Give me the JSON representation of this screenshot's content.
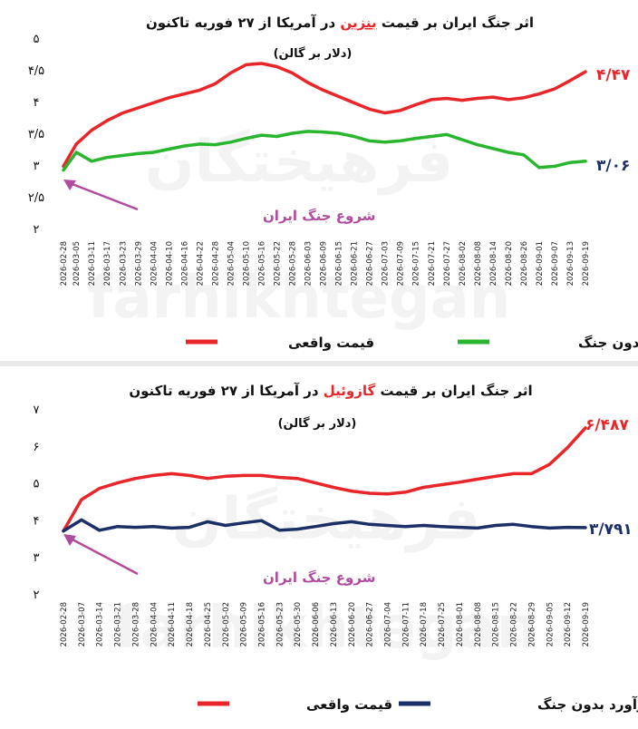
{
  "charts": [
    {
      "title_parts": {
        "before": "اثر جنگ ایران بر قیمت ",
        "highlight": "بنزین",
        "after": " در آمریکا از ۲۷ فوریه تاکنون"
      },
      "subtitle": "(دلار بر گالن)",
      "annotation": "شروع جنگ ایران",
      "end_labels": {
        "actual": "۴/۴۷",
        "baseline": "۳/۰۶"
      },
      "legend": {
        "actual": "قیمت واقعی",
        "baseline": "برآورد بدون جنگ"
      },
      "colors": {
        "actual": "#e8262a",
        "baseline": "#2ab52e",
        "highlight": "#e8262a",
        "annotation": "#b14ba0"
      },
      "y_tick_labels": [
        "۲",
        "۲/۵",
        "۳",
        "۳/۵",
        "۴",
        "۴/۵",
        "۵"
      ]
    },
    {
      "title_parts": {
        "before": "اثر جنگ ایران بر قیمت ",
        "highlight": "گازوئیل",
        "after": " در آمریکا از ۲۷ فوریه تاکنون"
      },
      "subtitle": "(دلار بر گالن)",
      "annotation": "شروع جنگ ایران",
      "end_labels": {
        "actual": "۶/۴۸۷",
        "baseline": "۳/۷۹۱"
      },
      "legend": {
        "actual": "قیمت واقعی",
        "baseline": "برآورد بدون جنگ"
      },
      "colors": {
        "actual": "#e8262a",
        "baseline": "#1c2f66",
        "highlight": "#e8262a",
        "annotation": "#b14ba0"
      },
      "y_tick_labels": [
        "۲",
        "۳",
        "۴",
        "۵",
        "۶",
        "۷"
      ]
    }
  ],
  "chart_data": [
    {
      "type": "line",
      "title": "اثر جنگ ایران بر قیمت بنزین در آمریکا از ۲۷ فوریه تاکنون",
      "ylabel": "(دلار بر گالن)",
      "ylim": [
        2,
        5
      ],
      "grid": false,
      "legend_position": "bottom",
      "x_ticks": [
        "2026-02-28",
        "2026-03-05",
        "2026-03-11",
        "2026-03-17",
        "2026-03-23",
        "2026-03-29",
        "2026-04-04",
        "2026-04-10",
        "2026-04-16",
        "2026-04-22",
        "2026-04-28",
        "2026-05-04",
        "2026-05-10",
        "2026-05-16",
        "2026-05-22",
        "2026-05-28",
        "2026-06-03",
        "2026-06-09",
        "2026-06-15",
        "2026-06-21",
        "2026-06-27",
        "2026-07-03",
        "2026-07-09",
        "2026-07-15",
        "2026-07-21",
        "2026-07-27",
        "2026-08-02",
        "2026-08-08",
        "2026-08-14",
        "2026-08-20",
        "2026-08-26",
        "2026-09-01",
        "2026-09-07",
        "2026-09-13",
        "2026-09-19"
      ],
      "series": [
        {
          "name": "قیمت واقعی",
          "x": [
            "2026-02-28",
            "2026-03-05",
            "2026-03-11",
            "2026-03-17",
            "2026-03-23",
            "2026-03-29",
            "2026-04-04",
            "2026-04-10",
            "2026-04-16",
            "2026-04-22",
            "2026-04-28",
            "2026-05-04",
            "2026-05-10",
            "2026-05-16",
            "2026-05-22",
            "2026-05-28",
            "2026-06-03",
            "2026-06-09",
            "2026-06-15",
            "2026-06-21",
            "2026-06-27",
            "2026-07-03",
            "2026-07-09",
            "2026-07-15",
            "2026-07-21",
            "2026-07-27",
            "2026-08-02",
            "2026-08-08",
            "2026-08-14",
            "2026-08-20",
            "2026-08-26",
            "2026-09-01",
            "2026-09-07",
            "2026-09-13",
            "2026-09-19"
          ],
          "values": [
            2.98,
            3.33,
            3.55,
            3.7,
            3.82,
            3.9,
            3.98,
            4.06,
            4.12,
            4.18,
            4.28,
            4.45,
            4.58,
            4.6,
            4.55,
            4.45,
            4.3,
            4.18,
            4.08,
            3.98,
            3.88,
            3.82,
            3.86,
            3.95,
            4.03,
            4.05,
            4.02,
            4.05,
            4.07,
            4.03,
            4.06,
            4.12,
            4.2,
            4.33,
            4.47
          ]
        },
        {
          "name": "برآورد بدون جنگ",
          "x": [
            "2026-02-28",
            "2026-03-05",
            "2026-03-11",
            "2026-03-17",
            "2026-03-23",
            "2026-03-29",
            "2026-04-04",
            "2026-04-10",
            "2026-04-16",
            "2026-04-22",
            "2026-04-28",
            "2026-05-04",
            "2026-05-10",
            "2026-05-16",
            "2026-05-22",
            "2026-05-28",
            "2026-06-03",
            "2026-06-09",
            "2026-06-15",
            "2026-06-21",
            "2026-06-27",
            "2026-07-03",
            "2026-07-09",
            "2026-07-15",
            "2026-07-21",
            "2026-07-27",
            "2026-08-02",
            "2026-08-08",
            "2026-08-14",
            "2026-08-20",
            "2026-08-26",
            "2026-09-01",
            "2026-09-07",
            "2026-09-13",
            "2026-09-19"
          ],
          "values": [
            2.92,
            3.2,
            3.06,
            3.12,
            3.15,
            3.18,
            3.2,
            3.25,
            3.3,
            3.33,
            3.32,
            3.36,
            3.42,
            3.47,
            3.45,
            3.5,
            3.53,
            3.52,
            3.5,
            3.45,
            3.38,
            3.36,
            3.38,
            3.42,
            3.45,
            3.48,
            3.4,
            3.32,
            3.26,
            3.2,
            3.16,
            2.96,
            2.98,
            3.04,
            3.06
          ]
        }
      ]
    },
    {
      "type": "line",
      "title": "اثر جنگ ایران بر قیمت گازوئیل در آمریکا از ۲۷ فوریه تاکنون",
      "ylabel": "(دلار بر گالن)",
      "ylim": [
        2,
        7
      ],
      "grid": false,
      "legend_position": "bottom",
      "x_ticks": [
        "2026-02-28",
        "2026-03-07",
        "2026-03-14",
        "2026-03-21",
        "2026-03-28",
        "2026-04-04",
        "2026-04-11",
        "2026-04-18",
        "2026-04-25",
        "2026-05-02",
        "2026-05-09",
        "2026-05-16",
        "2026-05-23",
        "2026-05-30",
        "2026-06-06",
        "2026-06-13",
        "2026-06-20",
        "2026-06-27",
        "2026-07-04",
        "2026-07-11",
        "2026-07-18",
        "2026-07-25",
        "2026-08-01",
        "2026-08-08",
        "2026-08-15",
        "2026-08-22",
        "2026-08-29",
        "2026-09-05",
        "2026-09-12",
        "2026-09-19"
      ],
      "series": [
        {
          "name": "قیمت واقعی",
          "x": [
            "2026-02-28",
            "2026-03-07",
            "2026-03-14",
            "2026-03-21",
            "2026-03-28",
            "2026-04-04",
            "2026-04-11",
            "2026-04-18",
            "2026-04-25",
            "2026-05-02",
            "2026-05-09",
            "2026-05-16",
            "2026-05-23",
            "2026-05-30",
            "2026-06-06",
            "2026-06-13",
            "2026-06-20",
            "2026-06-27",
            "2026-07-04",
            "2026-07-11",
            "2026-07-18",
            "2026-07-25",
            "2026-08-01",
            "2026-08-08",
            "2026-08-15",
            "2026-08-22",
            "2026-08-29",
            "2026-09-05",
            "2026-09-12",
            "2026-09-19"
          ],
          "values": [
            3.7,
            4.55,
            4.85,
            5.0,
            5.12,
            5.2,
            5.25,
            5.2,
            5.12,
            5.18,
            5.2,
            5.2,
            5.15,
            5.12,
            5.0,
            4.88,
            4.78,
            4.72,
            4.7,
            4.75,
            4.88,
            4.95,
            5.02,
            5.1,
            5.18,
            5.25,
            5.25,
            5.5,
            5.95,
            6.487
          ]
        },
        {
          "name": "برآورد بدون جنگ",
          "x": [
            "2026-02-28",
            "2026-03-07",
            "2026-03-14",
            "2026-03-21",
            "2026-03-28",
            "2026-04-04",
            "2026-04-11",
            "2026-04-18",
            "2026-04-25",
            "2026-05-02",
            "2026-05-09",
            "2026-05-16",
            "2026-05-23",
            "2026-05-30",
            "2026-06-06",
            "2026-06-13",
            "2026-06-20",
            "2026-06-27",
            "2026-07-04",
            "2026-07-11",
            "2026-07-18",
            "2026-07-25",
            "2026-08-01",
            "2026-08-08",
            "2026-08-15",
            "2026-08-22",
            "2026-08-29",
            "2026-09-05",
            "2026-09-12",
            "2026-09-19"
          ],
          "values": [
            3.7,
            4.0,
            3.72,
            3.82,
            3.8,
            3.82,
            3.78,
            3.8,
            3.95,
            3.85,
            3.92,
            3.98,
            3.72,
            3.75,
            3.82,
            3.9,
            3.95,
            3.88,
            3.85,
            3.82,
            3.85,
            3.82,
            3.8,
            3.78,
            3.85,
            3.88,
            3.82,
            3.78,
            3.8,
            3.791
          ]
        }
      ]
    }
  ]
}
